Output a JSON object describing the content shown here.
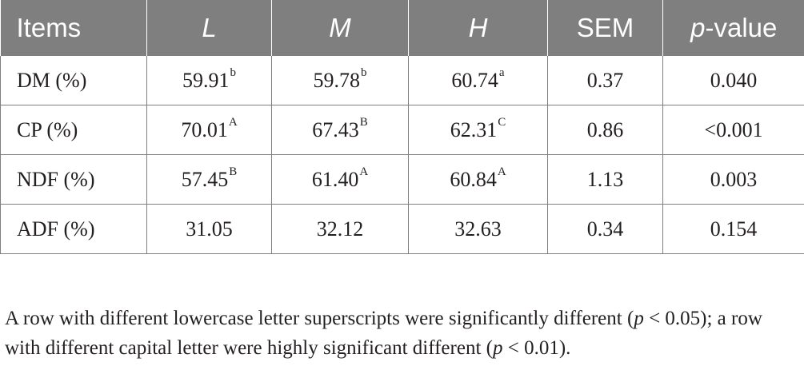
{
  "table": {
    "headers": [
      {
        "text": "Items",
        "italic": false
      },
      {
        "text": "L",
        "italic": true
      },
      {
        "text": "M",
        "italic": true
      },
      {
        "text": "H",
        "italic": true
      },
      {
        "text": "SEM",
        "italic": false
      },
      {
        "text_prefix": "p",
        "text_suffix": "-value"
      }
    ],
    "rows": [
      {
        "item": "DM (%)",
        "cells": [
          {
            "v": "59.91",
            "sup": "b"
          },
          {
            "v": "59.78",
            "sup": "b"
          },
          {
            "v": "60.74",
            "sup": "a"
          },
          {
            "v": "0.37",
            "sup": ""
          },
          {
            "v": "0.040",
            "sup": ""
          }
        ]
      },
      {
        "item": "CP (%)",
        "cells": [
          {
            "v": "70.01",
            "sup": "A"
          },
          {
            "v": "67.43",
            "sup": "B"
          },
          {
            "v": "62.31",
            "sup": "C"
          },
          {
            "v": "0.86",
            "sup": ""
          },
          {
            "v": "<0.001",
            "sup": ""
          }
        ]
      },
      {
        "item": "NDF (%)",
        "cells": [
          {
            "v": "57.45",
            "sup": "B"
          },
          {
            "v": "61.40",
            "sup": "A"
          },
          {
            "v": "60.84",
            "sup": "A"
          },
          {
            "v": "1.13",
            "sup": ""
          },
          {
            "v": "0.003",
            "sup": ""
          }
        ]
      },
      {
        "item": "ADF (%)",
        "cells": [
          {
            "v": "31.05",
            "sup": ""
          },
          {
            "v": "32.12",
            "sup": ""
          },
          {
            "v": "32.63",
            "sup": ""
          },
          {
            "v": "0.34",
            "sup": ""
          },
          {
            "v": "0.154",
            "sup": ""
          }
        ]
      }
    ]
  },
  "footnote": {
    "part1": "A row with different lowercase letter superscripts were significantly different (",
    "p1": "p",
    "part2": " < 0.05); a row with different capital letter were highly significant different (",
    "p2": "p",
    "part3": " < 0.01)."
  },
  "colors": {
    "header_bg": "#7f7f7f",
    "header_text": "#ffffff",
    "border": "#7f7f7f",
    "text": "#231f20"
  }
}
